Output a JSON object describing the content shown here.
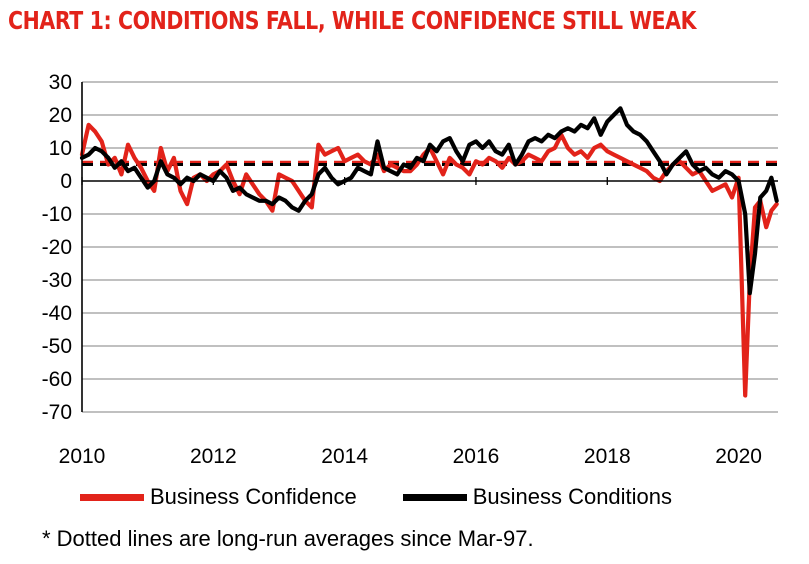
{
  "chart_data": {
    "type": "line",
    "title": "CHART 1: CONDITIONS FALL, WHILE CONFIDENCE STILL WEAK",
    "xlabel": "",
    "ylabel": "",
    "xlim": [
      2010,
      2020.6
    ],
    "ylim": [
      -70,
      30
    ],
    "yticks": [
      30,
      20,
      10,
      0,
      -10,
      -20,
      -30,
      -40,
      -50,
      -60,
      -70
    ],
    "xticks": [
      2010,
      2012,
      2014,
      2016,
      2018,
      2020
    ],
    "grid": true,
    "legend_position": "bottom",
    "series": [
      {
        "name": "Business Confidence",
        "color": "#e2231a",
        "x": [
          2010.0,
          2010.1,
          2010.2,
          2010.3,
          2010.4,
          2010.5,
          2010.6,
          2010.7,
          2010.8,
          2010.9,
          2011.0,
          2011.1,
          2011.2,
          2011.3,
          2011.4,
          2011.5,
          2011.6,
          2011.7,
          2011.8,
          2011.9,
          2012.0,
          2012.1,
          2012.2,
          2012.3,
          2012.4,
          2012.5,
          2012.6,
          2012.7,
          2012.8,
          2012.9,
          2013.0,
          2013.1,
          2013.2,
          2013.3,
          2013.4,
          2013.5,
          2013.6,
          2013.7,
          2013.8,
          2013.9,
          2014.0,
          2014.1,
          2014.2,
          2014.3,
          2014.4,
          2014.5,
          2014.6,
          2014.7,
          2014.8,
          2014.9,
          2015.0,
          2015.1,
          2015.2,
          2015.3,
          2015.4,
          2015.5,
          2015.6,
          2015.7,
          2015.8,
          2015.9,
          2016.0,
          2016.1,
          2016.2,
          2016.3,
          2016.4,
          2016.5,
          2016.6,
          2016.7,
          2016.8,
          2016.9,
          2017.0,
          2017.1,
          2017.2,
          2017.3,
          2017.4,
          2017.5,
          2017.6,
          2017.7,
          2017.8,
          2017.9,
          2018.0,
          2018.1,
          2018.2,
          2018.3,
          2018.4,
          2018.5,
          2018.6,
          2018.7,
          2018.8,
          2018.9,
          2019.0,
          2019.1,
          2019.2,
          2019.3,
          2019.4,
          2019.5,
          2019.6,
          2019.7,
          2019.8,
          2019.9,
          2020.0,
          2020.1,
          2020.17,
          2020.25,
          2020.33,
          2020.42,
          2020.5,
          2020.58
        ],
        "y": [
          8,
          17,
          15,
          12,
          5,
          7,
          2,
          11,
          7,
          4,
          0,
          -3,
          10,
          3,
          7,
          -3,
          -7,
          1,
          2,
          0,
          2,
          3,
          5,
          0,
          -4,
          2,
          -1,
          -4,
          -6,
          -9,
          2,
          1,
          0,
          -3,
          -6,
          -8,
          11,
          8,
          9,
          10,
          6,
          7,
          8,
          6,
          5,
          8,
          3,
          5,
          4,
          3,
          3,
          5,
          8,
          10,
          6,
          2,
          7,
          5,
          4,
          2,
          6,
          5,
          7,
          6,
          4,
          7,
          5,
          6,
          8,
          7,
          6,
          9,
          10,
          14,
          10,
          8,
          9,
          7,
          10,
          11,
          9,
          8,
          7,
          6,
          5,
          4,
          3,
          1,
          0,
          3,
          5,
          6,
          4,
          2,
          3,
          0,
          -3,
          -2,
          -1,
          -5,
          1,
          -65,
          -30,
          -8,
          -6,
          -14,
          -9,
          -7
        ]
      },
      {
        "name": "Business Conditions",
        "color": "#000000",
        "x": [
          2010.0,
          2010.1,
          2010.2,
          2010.3,
          2010.4,
          2010.5,
          2010.6,
          2010.7,
          2010.8,
          2010.9,
          2011.0,
          2011.1,
          2011.2,
          2011.3,
          2011.4,
          2011.5,
          2011.6,
          2011.7,
          2011.8,
          2011.9,
          2012.0,
          2012.1,
          2012.2,
          2012.3,
          2012.4,
          2012.5,
          2012.6,
          2012.7,
          2012.8,
          2012.9,
          2013.0,
          2013.1,
          2013.2,
          2013.3,
          2013.4,
          2013.5,
          2013.6,
          2013.7,
          2013.8,
          2013.9,
          2014.0,
          2014.1,
          2014.2,
          2014.3,
          2014.4,
          2014.5,
          2014.6,
          2014.7,
          2014.8,
          2014.9,
          2015.0,
          2015.1,
          2015.2,
          2015.3,
          2015.4,
          2015.5,
          2015.6,
          2015.7,
          2015.8,
          2015.9,
          2016.0,
          2016.1,
          2016.2,
          2016.3,
          2016.4,
          2016.5,
          2016.6,
          2016.7,
          2016.8,
          2016.9,
          2017.0,
          2017.1,
          2017.2,
          2017.3,
          2017.4,
          2017.5,
          2017.6,
          2017.7,
          2017.8,
          2017.9,
          2018.0,
          2018.1,
          2018.2,
          2018.3,
          2018.4,
          2018.5,
          2018.6,
          2018.7,
          2018.8,
          2018.9,
          2019.0,
          2019.1,
          2019.2,
          2019.3,
          2019.4,
          2019.5,
          2019.6,
          2019.7,
          2019.8,
          2019.9,
          2020.0,
          2020.1,
          2020.17,
          2020.25,
          2020.33,
          2020.42,
          2020.5,
          2020.58
        ],
        "y": [
          7,
          8,
          10,
          9,
          7,
          4,
          6,
          3,
          4,
          1,
          -2,
          0,
          6,
          2,
          1,
          -1,
          1,
          0,
          2,
          1,
          0,
          3,
          1,
          -3,
          -2,
          -4,
          -5,
          -6,
          -6,
          -7,
          -5,
          -6,
          -8,
          -9,
          -6,
          -4,
          2,
          4,
          1,
          -1,
          0,
          1,
          4,
          3,
          2,
          12,
          4,
          3,
          2,
          5,
          4,
          7,
          6,
          11,
          9,
          12,
          13,
          9,
          6,
          11,
          12,
          10,
          12,
          9,
          8,
          11,
          5,
          8,
          12,
          13,
          12,
          14,
          13,
          15,
          16,
          15,
          17,
          16,
          19,
          14,
          18,
          20,
          22,
          17,
          15,
          14,
          12,
          9,
          6,
          2,
          5,
          7,
          9,
          5,
          3,
          4,
          2,
          1,
          3,
          2,
          0,
          -10,
          -34,
          -22,
          -5,
          -3,
          1,
          -6
        ]
      }
    ],
    "reference_lines": [
      {
        "series": "Business Confidence",
        "y": 5.7,
        "style": "dotted"
      },
      {
        "series": "Business Conditions",
        "y": 5.0,
        "style": "dotted"
      }
    ]
  },
  "legend": {
    "confidence_label": "Business Confidence",
    "conditions_label": "Business Conditions"
  },
  "footnote": "* Dotted lines are long-run averages since Mar-97."
}
